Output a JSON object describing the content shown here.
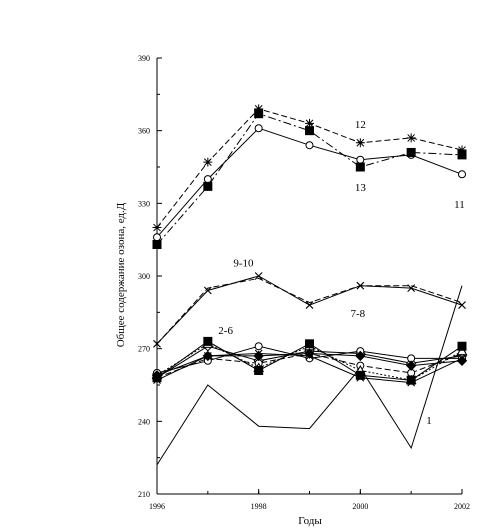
{
  "chart_data": {
    "type": "line",
    "title": "",
    "xlabel": "Годы",
    "ylabel": "Общее содержание озона, ед.Д",
    "xlim": [
      1996,
      2002
    ],
    "ylim": [
      210,
      390
    ],
    "x_ticks": [
      1996,
      1998,
      2000,
      2002
    ],
    "y_ticks": [
      210,
      240,
      270,
      300,
      330,
      360,
      390
    ],
    "x": [
      1996,
      1997,
      1998,
      1999,
      2000,
      2001,
      2002
    ],
    "grid": false,
    "legend": "none",
    "series": [
      {
        "values": [
          222,
          255,
          238,
          237,
          262,
          229,
          296
        ],
        "marker": "none",
        "dash": "solid",
        "color": "#000000"
      },
      {
        "values": [
          258,
          271,
          265,
          269,
          268,
          264,
          267
        ],
        "marker": "diamond",
        "dash": "solid",
        "color": "#000000"
      },
      {
        "values": [
          258,
          266,
          264,
          268,
          263,
          260,
          268
        ],
        "marker": "circle",
        "dash": "dashed",
        "color": "#000000"
      },
      {
        "values": [
          259,
          272,
          262,
          271,
          261,
          257,
          269
        ],
        "marker": "triangle",
        "dash": "dotted",
        "color": "#000000"
      },
      {
        "values": [
          260,
          265,
          271,
          266,
          269,
          266,
          266
        ],
        "marker": "circle",
        "dash": "solid",
        "color": "#000000"
      },
      {
        "values": [
          257,
          267,
          268,
          267,
          258,
          256,
          266
        ],
        "marker": "x",
        "dash": "solid",
        "color": "#000000"
      },
      {
        "values": [
          259,
          267,
          267,
          268,
          267,
          263,
          265
        ],
        "marker": "filled-diamond",
        "dash": "solid",
        "color": "#000000"
      },
      {
        "values": [
          258,
          273,
          261,
          272,
          259,
          257,
          271
        ],
        "marker": "filled-square",
        "dash": "solid",
        "color": "#000000"
      },
      {
        "values": [
          272,
          294,
          300,
          288,
          296,
          295,
          288
        ],
        "marker": "x",
        "dash": "solid",
        "color": "#000000"
      },
      {
        "values": [
          272,
          295,
          299,
          289,
          296,
          296,
          289
        ],
        "marker": "none",
        "dash": "dashed",
        "color": "#000000"
      },
      {
        "values": [
          316,
          340,
          361,
          354,
          348,
          350,
          342
        ],
        "marker": "circle",
        "dash": "solid",
        "color": "#000000"
      },
      {
        "values": [
          320,
          347,
          369,
          363,
          355,
          357,
          352
        ],
        "marker": "star",
        "dash": "dashed",
        "color": "#000000"
      },
      {
        "values": [
          313,
          337,
          367,
          360,
          345,
          351,
          350
        ],
        "marker": "filled-square",
        "dash": "dashdot",
        "color": "#000000"
      }
    ],
    "annotations": [
      {
        "text": "12",
        "x": 2000,
        "y": 361
      },
      {
        "text": "13",
        "x": 2000,
        "y": 335
      },
      {
        "text": "11",
        "x": 2001.95,
        "y": 328
      },
      {
        "text": "9-10",
        "x": 1997.7,
        "y": 304
      },
      {
        "text": "2-6",
        "x": 1997.35,
        "y": 276
      },
      {
        "text": "7-8",
        "x": 1999.95,
        "y": 283
      },
      {
        "text": "1",
        "x": 2001.35,
        "y": 239
      }
    ]
  }
}
